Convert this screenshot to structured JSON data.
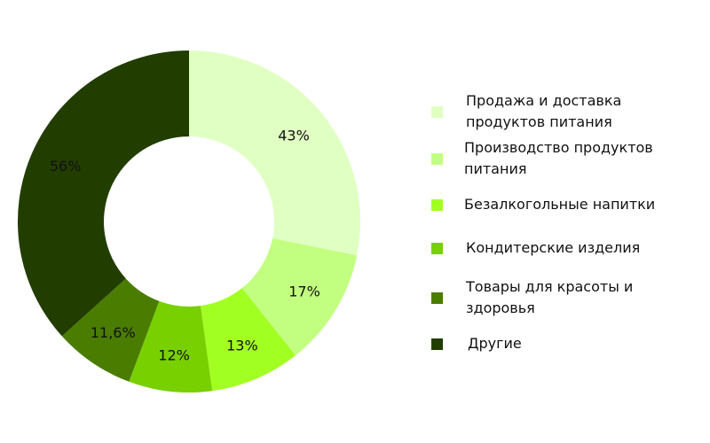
{
  "chart_data": {
    "type": "pie",
    "variant": "donut",
    "categories": [
      "Продажа и доставка продуктов питания",
      "Производство продуктов питания",
      "Безалкогольные напитки",
      "Кондитерские изделия",
      "Товары для красоты и здоровья",
      "Другие"
    ],
    "values": [
      43,
      17,
      13,
      12,
      11.6,
      56
    ],
    "data_labels": [
      "43%",
      "17%",
      "13%",
      "12%",
      "11,6%",
      "56%"
    ],
    "colors": [
      "#e0ffc2",
      "#c2ff80",
      "#a2ff22",
      "#78d000",
      "#4a7c00",
      "#223d00"
    ],
    "legend_position": "right"
  }
}
